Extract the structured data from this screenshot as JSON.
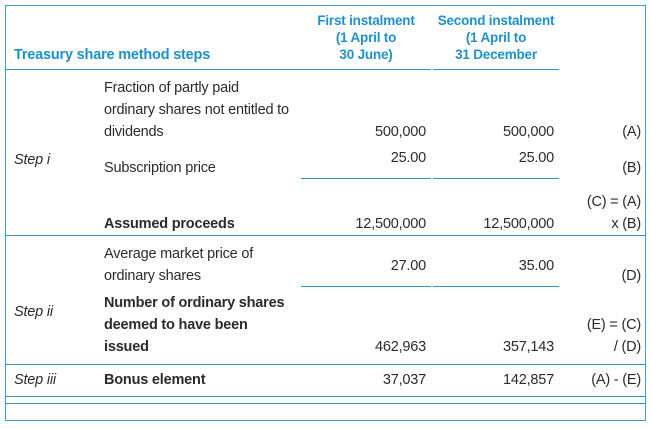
{
  "header": {
    "title": "Treasury share method steps",
    "col_first": "First instalment\n(1 April to\n30 June)",
    "col_second": "Second instalment\n(1 April to\n31 December"
  },
  "steps": {
    "i": "Step i",
    "ii": "Step ii",
    "iii": "Step iii"
  },
  "rows": {
    "r1": {
      "desc": "Fraction of partly paid\nordinary shares not entitled to\ndividends",
      "v1": "500,000",
      "v2": "500,000",
      "ref": "(A)"
    },
    "r2": {
      "desc": "Subscription price",
      "v1": "25.00",
      "v2": "25.00",
      "ref": "(B)"
    },
    "r3": {
      "desc": "Assumed proceeds",
      "v1": "12,500,000",
      "v2": "12,500,000",
      "ref": "(C) = (A)\nx (B)"
    },
    "r4": {
      "desc": "Average market price of\nordinary shares",
      "v1": "27.00",
      "v2": "35.00",
      "ref": "(D)"
    },
    "r5": {
      "desc": "Number of ordinary shares\ndeemed to have been\nissued",
      "v1": "462,963",
      "v2": "357,143",
      "ref": "(E) = (C)\n/ (D)"
    },
    "r6": {
      "desc": "Bonus element",
      "v1": "37,037",
      "v2": "142,857",
      "ref": "(A) - (E)"
    }
  },
  "colors": {
    "accent_blue_text": "#1d91c8",
    "rule_blue": "#2f97c7",
    "border_blue": "#3a9cc9",
    "body_text": "#2b2b2d"
  }
}
